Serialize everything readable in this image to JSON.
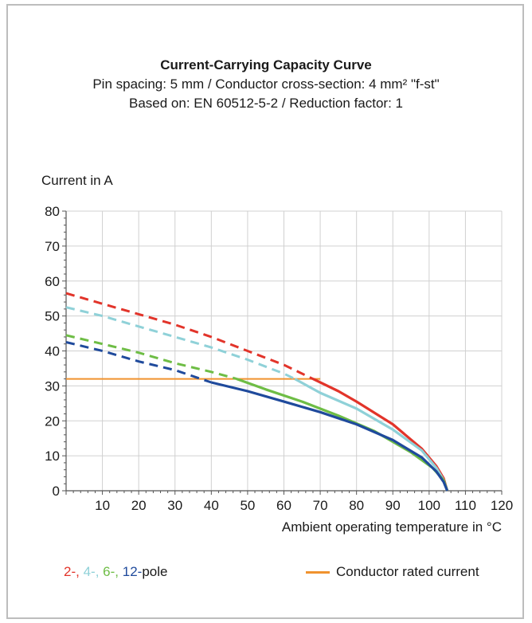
{
  "chart_data": {
    "type": "line",
    "title": "Current-Carrying Capacity Curve",
    "subtitle_lines": [
      "Pin spacing: 5 mm / Conductor cross-section: 4 mm² \"f-st\"",
      "Based on: EN 60512-5-2 / Reduction factor: 1"
    ],
    "xlabel": "Ambient operating temperature in °C",
    "ylabel": "Current in A",
    "xlim": [
      0,
      120
    ],
    "ylim": [
      0,
      80
    ],
    "x_ticks": [
      10,
      20,
      30,
      40,
      50,
      60,
      70,
      80,
      90,
      100,
      110,
      120
    ],
    "y_ticks": [
      0,
      10,
      20,
      30,
      40,
      50,
      60,
      70,
      80
    ],
    "grid": true,
    "legend_placement": "bottom",
    "series": [
      {
        "name": "2",
        "color": "#e2342a",
        "dashed_points": [
          [
            0,
            56.5
          ],
          [
            10,
            53.5
          ],
          [
            20,
            50.5
          ],
          [
            30,
            47.5
          ],
          [
            40,
            44
          ],
          [
            50,
            40
          ],
          [
            60,
            36
          ],
          [
            68,
            32
          ]
        ],
        "solid_points": [
          [
            68,
            32
          ],
          [
            75,
            28.5
          ],
          [
            80,
            25.5
          ],
          [
            90,
            19
          ],
          [
            98,
            12
          ],
          [
            102,
            7
          ],
          [
            104,
            3.5
          ],
          [
            105,
            0
          ]
        ]
      },
      {
        "name": "4",
        "color": "#8fd1d8",
        "dashed_points": [
          [
            0,
            52.5
          ],
          [
            10,
            50
          ],
          [
            20,
            47
          ],
          [
            30,
            44
          ],
          [
            40,
            41
          ],
          [
            50,
            37.5
          ],
          [
            60,
            33.5
          ],
          [
            63,
            32
          ]
        ],
        "solid_points": [
          [
            63,
            32
          ],
          [
            70,
            28
          ],
          [
            80,
            23.5
          ],
          [
            90,
            17.5
          ],
          [
            98,
            11.5
          ],
          [
            102,
            6.5
          ],
          [
            104,
            3
          ],
          [
            105,
            0
          ]
        ]
      },
      {
        "name": "6",
        "color": "#6ebd45",
        "dashed_points": [
          [
            0,
            44.5
          ],
          [
            10,
            42
          ],
          [
            20,
            39.5
          ],
          [
            30,
            36.5
          ],
          [
            40,
            34
          ],
          [
            47,
            32
          ]
        ],
        "solid_points": [
          [
            47,
            32
          ],
          [
            55,
            29
          ],
          [
            65,
            25.5
          ],
          [
            75,
            21.5
          ],
          [
            85,
            17
          ],
          [
            95,
            11
          ],
          [
            101,
            6.5
          ],
          [
            104,
            3
          ],
          [
            105,
            0
          ]
        ]
      },
      {
        "name": "12",
        "color": "#1f4a9c",
        "dashed_points": [
          [
            0,
            42.5
          ],
          [
            10,
            40
          ],
          [
            20,
            37
          ],
          [
            30,
            34.5
          ],
          [
            40,
            31
          ]
        ],
        "solid_points": [
          [
            40,
            31
          ],
          [
            50,
            28.5
          ],
          [
            60,
            25.5
          ],
          [
            70,
            22.5
          ],
          [
            80,
            19
          ],
          [
            90,
            14.5
          ],
          [
            98,
            9.5
          ],
          [
            102,
            5.5
          ],
          [
            104,
            2.5
          ],
          [
            105,
            0
          ]
        ]
      }
    ],
    "reference_line": {
      "name": "Conductor rated current",
      "color": "#f0922e",
      "y": 32,
      "x_range": [
        0,
        70
      ]
    }
  },
  "legend": {
    "poles": [
      {
        "text": "2-,",
        "color": "#e2342a"
      },
      {
        "text": "4-,",
        "color": "#8fd1d8"
      },
      {
        "text": "6-,",
        "color": "#6ebd45"
      },
      {
        "text": "12-",
        "color": "#1f4a9c"
      }
    ],
    "poles_suffix": "pole",
    "rated_label": "Conductor rated current"
  }
}
